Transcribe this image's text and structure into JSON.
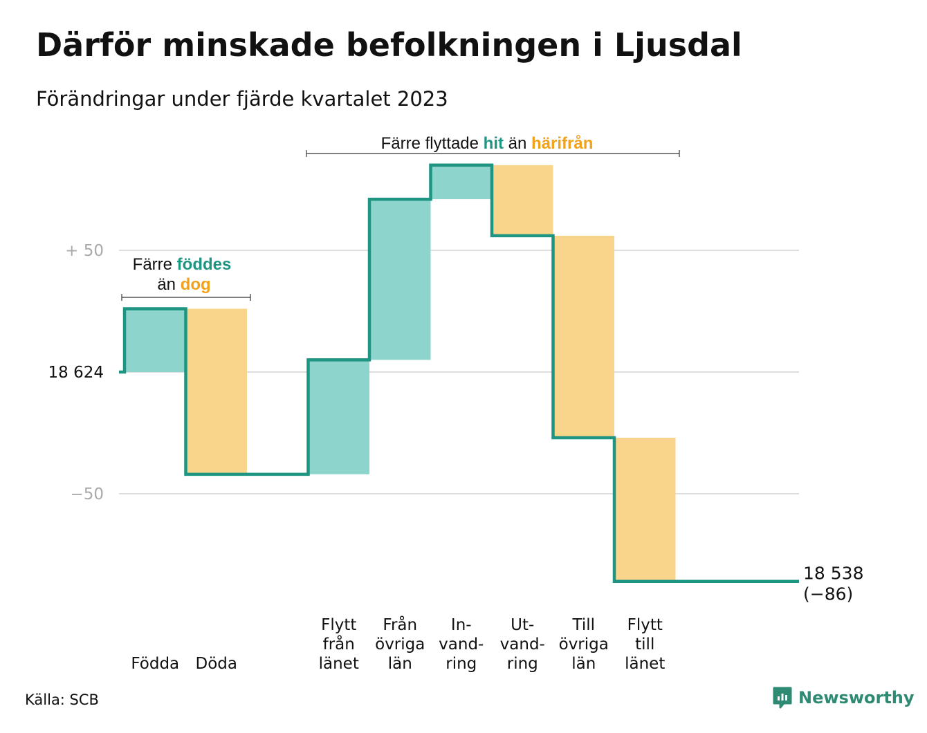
{
  "header": {
    "title": "Därför minskade befolkningen i Ljusdal",
    "subtitle": "Förändringar under fjärde kvartalet 2023"
  },
  "footer": {
    "source": "Källa: SCB",
    "brand": "Newsworthy"
  },
  "colors": {
    "increase_fill": "#8dd5cc",
    "decrease_fill": "#f9d58c",
    "line": "#1e9482",
    "teal_text": "#1e9482",
    "orange_text": "#f1a21c",
    "grid": "#dedede",
    "axis_text": "#aaaaaa"
  },
  "chart_data": {
    "type": "waterfall",
    "start_value": 18624,
    "start_label": "18 624",
    "end_value": 18538,
    "end_label": "18 538",
    "end_change_label": "(−86)",
    "ytick_labels": [
      "+ 50",
      "18 624",
      "−50"
    ],
    "ytick_values": [
      50,
      0,
      -50
    ],
    "ylim": [
      -90,
      90
    ],
    "grid": true,
    "steps": [
      {
        "category": "Födda",
        "label_lines": [
          "Födda"
        ],
        "change": 26,
        "kind": "increase"
      },
      {
        "category": "Döda",
        "label_lines": [
          "Döda"
        ],
        "change": -68,
        "kind": "decrease"
      },
      {
        "category": "",
        "label_lines": [],
        "change": 0,
        "kind": "none"
      },
      {
        "category": "Flytt från länet",
        "label_lines": [
          "Flytt",
          "från",
          "länet"
        ],
        "change": 47,
        "kind": "increase"
      },
      {
        "category": "Från övriga län",
        "label_lines": [
          "Från",
          "övriga",
          "län"
        ],
        "change": 66,
        "kind": "increase"
      },
      {
        "category": "In- vand- ring",
        "label_lines": [
          "In-",
          "vand-",
          "ring"
        ],
        "change": 14,
        "kind": "increase"
      },
      {
        "category": "Ut- vand- ring",
        "label_lines": [
          "Ut-",
          "vand-",
          "ring"
        ],
        "change": -29,
        "kind": "decrease"
      },
      {
        "category": "Till övriga län",
        "label_lines": [
          "Till",
          "övriga",
          "län"
        ],
        "change": -83,
        "kind": "decrease"
      },
      {
        "category": "Flytt till länet",
        "label_lines": [
          "Flytt",
          "till",
          "länet"
        ],
        "change": -59,
        "kind": "decrease"
      }
    ],
    "annotations": {
      "births": {
        "line1_prefix": "Färre",
        "line1_highlight": "föddes",
        "line2_prefix": "än",
        "line2_highlight": "dog"
      },
      "moves": {
        "prefix": "Färre flyttade",
        "highlight1": "hit",
        "middle": "än",
        "highlight2": "härifrån"
      }
    }
  }
}
